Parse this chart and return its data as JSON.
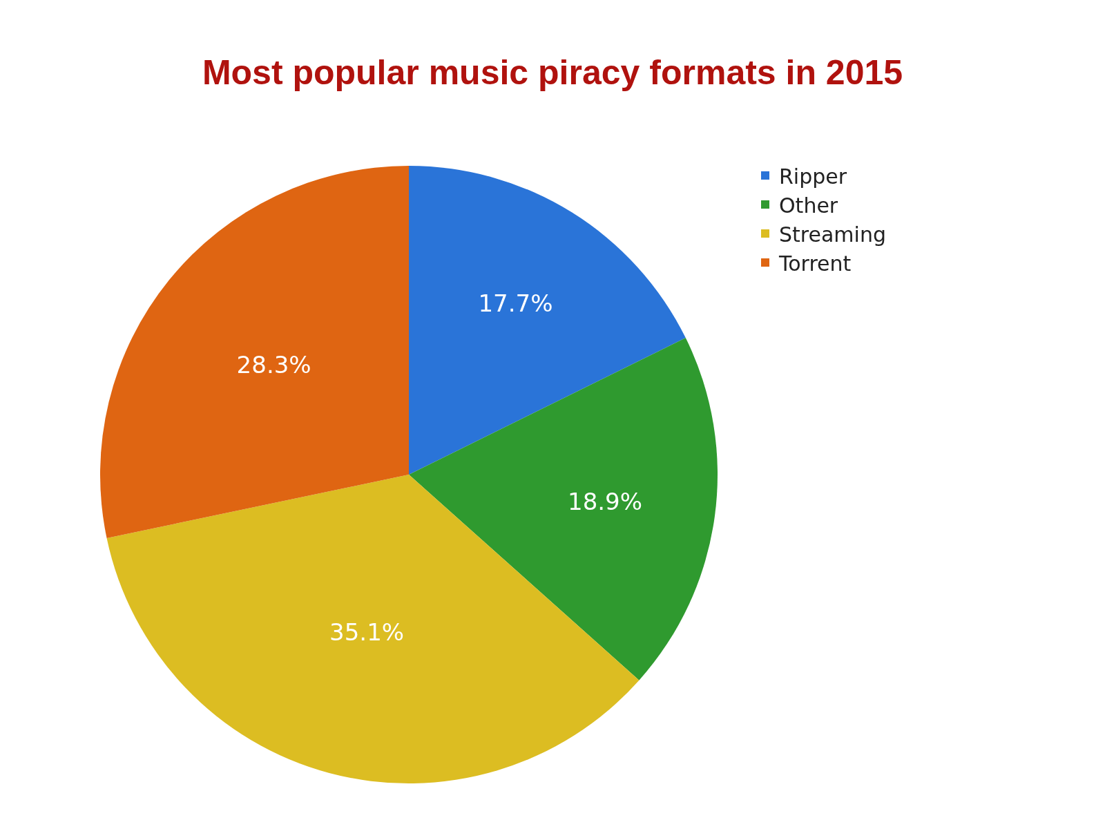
{
  "chart_data": {
    "type": "pie",
    "title": "Most popular music piracy formats in 2015",
    "categories": [
      "Ripper",
      "Other",
      "Streaming",
      "Torrent"
    ],
    "values": [
      17.7,
      18.9,
      35.1,
      28.3
    ],
    "value_labels": [
      "17.7%",
      "18.9%",
      "35.1%",
      "28.3%"
    ],
    "colors": [
      "#2a74d8",
      "#2f9a2f",
      "#dcbd22",
      "#df6512"
    ],
    "legend": "top right"
  }
}
